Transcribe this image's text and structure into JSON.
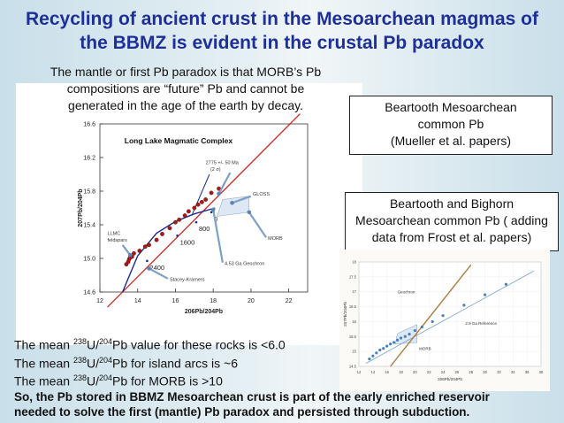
{
  "title": {
    "line1": "Recycling of ancient crust in the Mesoarchean magmas of",
    "line2": "the BBMZ is evident in the crustal Pb paradox"
  },
  "note": {
    "line1": "The mantle or first Pb paradox is that MORB’s Pb",
    "line2": "compositions are “future” Pb and cannot be",
    "line3": "generated in the age of the earth by decay."
  },
  "callout1": {
    "line1": "Beartooth Mesoarchean",
    "line2": "common Pb",
    "line3": "(Mueller et al. papers)"
  },
  "callout2": {
    "line1": "Beartooth and Bighorn",
    "line2": "Mesoarchean common Pb ( adding",
    "line3": "data from Frost et al. papers)"
  },
  "bottom": {
    "l1_pre": "The mean ",
    "l1_sup1": "238",
    "l1_mid": "U/",
    "l1_sup2": "204",
    "l1_post": "Pb value for these rocks is <6.0",
    "l2_pre": "The mean ",
    "l2_sup1": "238",
    "l2_mid": "U/",
    "l2_sup2": "204",
    "l2_post": "Pb for island arcs is ~6",
    "l3_pre": "The mean ",
    "l3_sup1": "238",
    "l3_mid": "U/",
    "l3_sup2": "204",
    "l3_post": "Pb for MORB is >10",
    "bold1": "So, the Pb stored in BBMZ Mesoarchean crust is part of the early enriched reservoir",
    "bold2": "needed to solve the  first (mantle) Pb paradox and persisted through subduction."
  },
  "chart_data": [
    {
      "type": "scatter",
      "title": "Long Lake Magmatic Complex",
      "xlabel": "206Pb/204Pb",
      "ylabel": "207Pb/204Pb",
      "xlim": [
        12,
        23
      ],
      "ylim": [
        14.6,
        16.6
      ],
      "xticks": [
        12,
        14,
        16,
        18,
        20,
        22
      ],
      "yticks": [
        14.6,
        15.0,
        15.4,
        15.8,
        16.2,
        16.6
      ],
      "annotations": [
        "2775 +/- 50 Ma",
        "(2 σ)",
        "GLOSS",
        "0",
        "800",
        "1600",
        "2400",
        "LLMC",
        "feldspars",
        "MORB",
        "4.53 Ga Geochron",
        "Stacey-Kramers"
      ],
      "reference_line": {
        "name": "2775 Ma isochron",
        "x": [
          12.4,
          22.6
        ],
        "y": [
          14.42,
          16.72
        ],
        "color": "#d0241c"
      },
      "model_curve": {
        "name": "Stacey-Kramers",
        "x": [
          13.2,
          14.0,
          15.0,
          16.0,
          17.0,
          18.1
        ],
        "y": [
          14.6,
          15.03,
          15.3,
          15.44,
          15.53,
          15.6
        ],
        "color": "#1a2a8c"
      },
      "model_labels": [
        {
          "text": "2400",
          "x": 14.5,
          "y": 14.97
        },
        {
          "text": "1600",
          "x": 16.1,
          "y": 15.27
        },
        {
          "text": "800",
          "x": 17.1,
          "y": 15.43
        },
        {
          "text": "0",
          "x": 17.9,
          "y": 15.55
        }
      ],
      "series": [
        {
          "name": "LLMC feldspars",
          "color": "#a8191a",
          "x": [
            13.4,
            13.5,
            13.55,
            13.6,
            13.7,
            13.8,
            14.1,
            14.4,
            14.6,
            15.0,
            15.3,
            15.7,
            16.0,
            16.2,
            16.5,
            16.7,
            17.0,
            17.2,
            17.4,
            17.6,
            17.9,
            18.3
          ],
          "y": [
            14.93,
            14.96,
            14.99,
            15.01,
            15.02,
            15.06,
            15.09,
            15.14,
            15.16,
            15.22,
            15.29,
            15.36,
            15.43,
            15.46,
            15.51,
            15.56,
            15.6,
            15.64,
            15.67,
            15.7,
            15.78,
            15.83
          ]
        }
      ]
    },
    {
      "type": "scatter",
      "xlabel": "206Pb/204Pb",
      "ylabel": "207Pb/204Pb",
      "xlim": [
        12,
        38
      ],
      "ylim": [
        14.5,
        18
      ],
      "xticks": [
        12,
        14,
        16,
        18,
        20,
        22,
        24,
        26,
        28,
        30,
        32,
        34,
        36,
        38
      ],
      "yticks": [
        14.5,
        15,
        15.5,
        16,
        16.5,
        17,
        17.5,
        18
      ],
      "annotations": [
        "Geochron",
        "2.9 Ga Reference",
        "MORB"
      ],
      "series": [
        {
          "name": "Beartooth and Bighorn",
          "color": "#4a7fb8",
          "x": [
            13.5,
            14.0,
            14.5,
            15.0,
            15.5,
            16.0,
            16.5,
            17.0,
            17.5,
            18.0,
            18.6,
            19.2,
            20.0,
            21.0,
            22.5,
            24.0,
            27.0,
            30.0,
            33.0
          ],
          "y": [
            14.75,
            14.85,
            14.95,
            15.05,
            15.1,
            15.18,
            15.25,
            15.3,
            15.38,
            15.45,
            15.5,
            15.58,
            15.7,
            15.82,
            16.0,
            16.2,
            16.55,
            16.9,
            17.25
          ]
        }
      ]
    }
  ]
}
